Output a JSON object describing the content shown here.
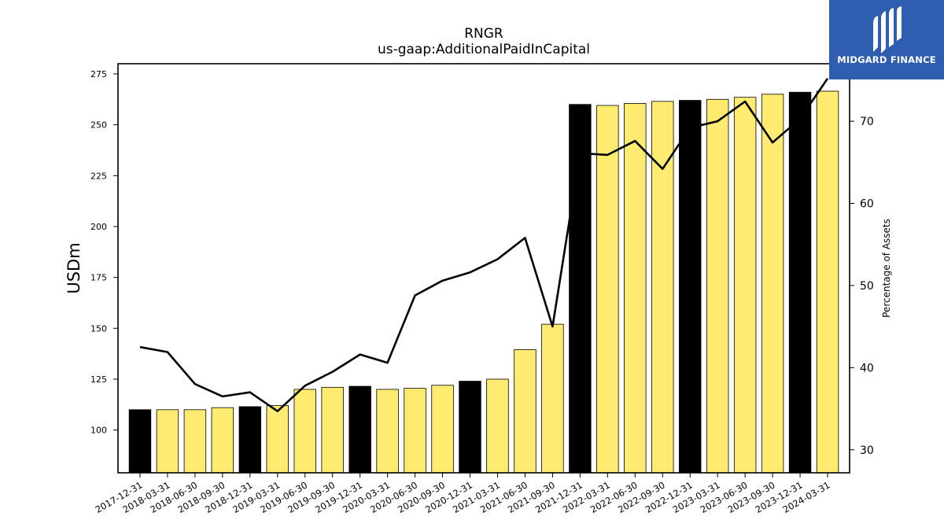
{
  "logo": {
    "text": "MIDGARD FINANCE",
    "background": "#2f5db0"
  },
  "chart_data": {
    "type": "bar",
    "title": "RNGR",
    "subtitle": "us-gaap:AdditionalPaidInCapital",
    "ylabel": "USDm",
    "y2label": "Percentage of Assets",
    "ylim": [
      79,
      280
    ],
    "y2lim": [
      27.2,
      77.0
    ],
    "yticks": [
      100,
      125,
      150,
      175,
      200,
      225,
      250,
      275
    ],
    "y2ticks": [
      30,
      40,
      50,
      60,
      70
    ],
    "categories": [
      "2017-12-31",
      "2018-03-31",
      "2018-06-30",
      "2018-09-30",
      "2018-12-31",
      "2019-03-31",
      "2019-06-30",
      "2019-09-30",
      "2019-12-31",
      "2020-03-31",
      "2020-06-30",
      "2020-09-30",
      "2020-12-31",
      "2021-03-31",
      "2021-06-30",
      "2021-09-30",
      "2021-12-31",
      "2022-03-31",
      "2022-06-30",
      "2022-09-30",
      "2022-12-31",
      "2023-03-31",
      "2023-06-30",
      "2023-09-30",
      "2023-12-31",
      "2024-03-31"
    ],
    "series": [
      {
        "type": "bar",
        "axis": "left",
        "values": [
          110,
          110,
          110,
          111,
          111.5,
          112,
          120,
          121,
          121.5,
          120,
          120.5,
          122,
          124,
          125,
          139.5,
          152,
          260,
          259.5,
          260.5,
          261.5,
          262,
          262.5,
          263.5,
          265,
          266,
          266.5
        ],
        "colors": [
          "#000000",
          "#ffeb70",
          "#ffeb70",
          "#ffeb70",
          "#000000",
          "#ffeb70",
          "#ffeb70",
          "#ffeb70",
          "#000000",
          "#ffeb70",
          "#ffeb70",
          "#ffeb70",
          "#000000",
          "#ffeb70",
          "#ffeb70",
          "#ffeb70",
          "#000000",
          "#ffeb70",
          "#ffeb70",
          "#ffeb70",
          "#000000",
          "#ffeb70",
          "#ffeb70",
          "#ffeb70",
          "#000000",
          "#ffeb70"
        ]
      },
      {
        "type": "line",
        "axis": "right",
        "values": [
          42.5,
          41.9,
          38.0,
          36.5,
          37.0,
          34.7,
          37.8,
          39.5,
          41.6,
          40.6,
          48.8,
          50.6,
          51.6,
          53.2,
          55.8,
          45.0,
          66.1,
          65.9,
          67.6,
          64.2,
          69.2,
          70.0,
          72.4,
          67.4,
          70.3,
          75.2
        ],
        "color": "#000000"
      }
    ],
    "legend": "none",
    "grid": false
  }
}
